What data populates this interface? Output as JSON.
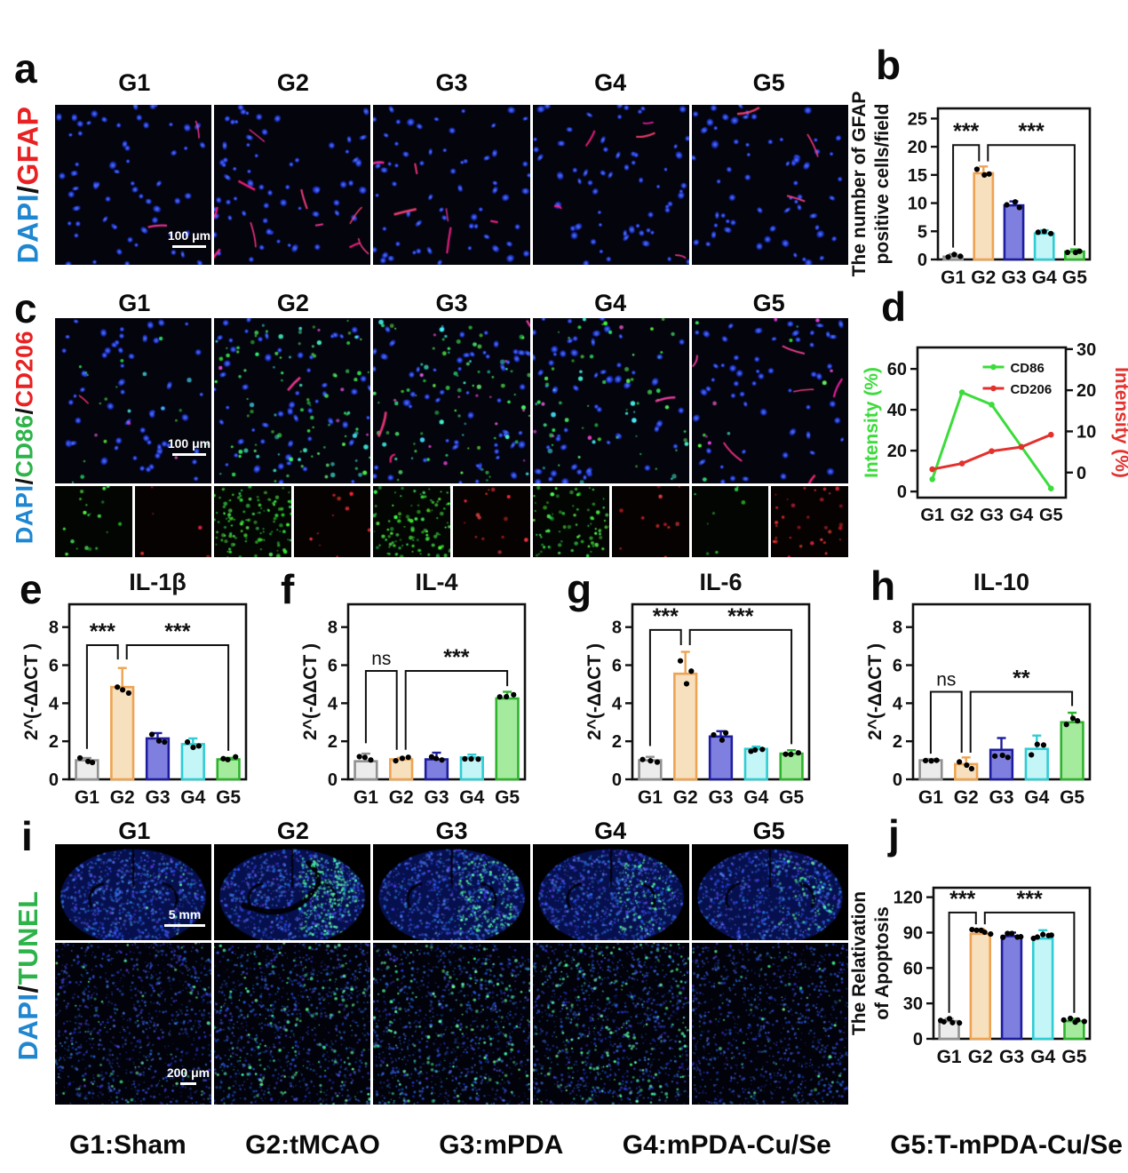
{
  "figure": {
    "groups": [
      "G1",
      "G2",
      "G3",
      "G4",
      "G5"
    ],
    "legend": [
      "G1:Sham",
      "G2:tMCAO",
      "G3:mPDA",
      "G4:mPDA-Cu/Se",
      "G5:T-mPDA-Cu/Se"
    ],
    "panels": {
      "a": {
        "letter": "a"
      },
      "b": {
        "letter": "b"
      },
      "c": {
        "letter": "c"
      },
      "d": {
        "letter": "d"
      },
      "e": {
        "letter": "e"
      },
      "f": {
        "letter": "f"
      },
      "g": {
        "letter": "g"
      },
      "h": {
        "letter": "h"
      },
      "i": {
        "letter": "i"
      },
      "j": {
        "letter": "j"
      }
    },
    "side_labels": {
      "a": [
        {
          "t": "DAPI",
          "c": "#1f86d0"
        },
        {
          "t": "/",
          "c": "#111111"
        },
        {
          "t": "GFAP",
          "c": "#e82222"
        }
      ],
      "c": [
        {
          "t": "DAPI",
          "c": "#1f86d0"
        },
        {
          "t": "/",
          "c": "#111111"
        },
        {
          "t": "CD86",
          "c": "#2db34a"
        },
        {
          "t": "/",
          "c": "#111111"
        },
        {
          "t": "CD206",
          "c": "#e82222"
        }
      ],
      "i": [
        {
          "t": "DAPI",
          "c": "#1f86d0"
        },
        {
          "t": "/",
          "c": "#111111"
        },
        {
          "t": "TUNEL",
          "c": "#2db34a"
        }
      ]
    },
    "scalebars": {
      "a": "100 μm",
      "c": "100 μm",
      "i_top": "5 mm",
      "i_bottom": "200 μm"
    },
    "colors": {
      "bar_fills": [
        "#ececec",
        "#f7e0bd",
        "#7f7fe0",
        "#c4f5f7",
        "#a5eb9e"
      ],
      "bar_strokes": [
        "#909090",
        "#eea353",
        "#1d1d9e",
        "#2fcdd4",
        "#2eb32e"
      ],
      "line_green": "#3bdc3b",
      "line_red": "#e3312d"
    },
    "microscopy": {
      "a": {
        "nuclei": 62,
        "red_streaks": [
          2,
          10,
          6,
          5,
          3
        ]
      },
      "c_merged": {
        "nuclei": 55,
        "green": [
          14,
          70,
          58,
          48,
          6
        ],
        "magenta": [
          3,
          5,
          12,
          5,
          6
        ],
        "red_streaks": [
          1,
          1,
          3,
          1,
          6
        ]
      },
      "c_channels": {
        "green": [
          12,
          75,
          65,
          50,
          5
        ],
        "red": [
          3,
          6,
          9,
          7,
          20
        ]
      },
      "i_top": {
        "lesion_green": [
          3,
          45,
          30,
          20,
          12
        ]
      },
      "i_bottom": {
        "green": [
          20,
          50,
          55,
          70,
          15
        ]
      }
    }
  },
  "chart_data": [
    {
      "panel": "b",
      "type": "bar",
      "categories": [
        "G1",
        "G2",
        "G3",
        "G4",
        "G5"
      ],
      "values": [
        0.5,
        15.3,
        9.6,
        4.6,
        1.4
      ],
      "errors": [
        0.45,
        1.2,
        0.7,
        0.6,
        0.4
      ],
      "points": 3,
      "ylabel_lines": [
        "The number of GFAP",
        "positive cells/field"
      ],
      "ylim": [
        0,
        26.8
      ],
      "yticks": [
        0,
        5,
        10,
        15,
        20,
        25
      ],
      "significance": [
        {
          "from": "G1",
          "to": "G2",
          "label": "***",
          "y_from": 2.1,
          "y_to": 17.4,
          "y_top": 20.3
        },
        {
          "from": "G2",
          "to": "G5",
          "label": "***",
          "y_from": 17.4,
          "y_to": 2.5,
          "y_top": 20.3
        }
      ]
    },
    {
      "panel": "d",
      "type": "line",
      "x": [
        "G1",
        "G2",
        "G3",
        "G4",
        "G5"
      ],
      "series": [
        {
          "name": "CD86",
          "axis": "left",
          "color": "#3bdc3b",
          "values": [
            6,
            48.5,
            42.5,
            22,
            1.5
          ]
        },
        {
          "name": "CD206",
          "axis": "right",
          "color": "#e3312d",
          "values": [
            0.8,
            2.2,
            5.2,
            6.2,
            9.2
          ]
        }
      ],
      "left_ylabel": "Intensity (%)",
      "right_ylabel": "Intensity (%)",
      "left_ylim": [
        -3,
        70.5
      ],
      "right_ylim": [
        -6.1,
        30.4
      ],
      "left_yticks": [
        0,
        20,
        40,
        60
      ],
      "right_yticks": [
        0,
        10,
        20,
        30
      ],
      "legend": [
        "CD86",
        "CD206"
      ],
      "legend_position": "top-right"
    },
    {
      "panel": "e",
      "type": "bar",
      "title": "IL-1β",
      "categories": [
        "G1",
        "G2",
        "G3",
        "G4",
        "G5"
      ],
      "values": [
        1.0,
        4.85,
        2.15,
        1.85,
        1.05
      ],
      "errors": [
        0.12,
        1.0,
        0.28,
        0.3,
        0.08
      ],
      "points": 3,
      "ylabel": "2^(-ΔΔCT )",
      "ylim": [
        0,
        9.2
      ],
      "yticks": [
        0,
        2,
        4,
        6,
        8
      ],
      "significance": [
        {
          "from": "G1",
          "to": "G2",
          "label": "***",
          "y_from": 1.6,
          "y_to": 6.3,
          "y_top": 7.05
        },
        {
          "from": "G2",
          "to": "G5",
          "label": "***",
          "y_from": 6.3,
          "y_to": 1.5,
          "y_top": 7.05
        }
      ]
    },
    {
      "panel": "f",
      "type": "bar",
      "title": "IL-4",
      "categories": [
        "G1",
        "G2",
        "G3",
        "G4",
        "G5"
      ],
      "values": [
        0.95,
        1.05,
        1.05,
        1.15,
        4.25
      ],
      "errors": [
        0.4,
        0.08,
        0.35,
        0.15,
        0.35
      ],
      "points": 3,
      "ylabel": "2^(-ΔΔCT )",
      "ylim": [
        0,
        9.2
      ],
      "yticks": [
        0,
        2,
        4,
        6,
        8
      ],
      "significance": [
        {
          "from": "G1",
          "to": "G2",
          "label": "ns",
          "y_from": 1.9,
          "y_to": 1.55,
          "y_top": 5.7
        },
        {
          "from": "G2",
          "to": "G5",
          "label": "***",
          "y_from": 1.55,
          "y_to": 4.9,
          "y_top": 5.7
        }
      ]
    },
    {
      "panel": "g",
      "type": "bar",
      "title": "IL-6",
      "categories": [
        "G1",
        "G2",
        "G3",
        "G4",
        "G5"
      ],
      "values": [
        1.0,
        5.55,
        2.25,
        1.6,
        1.35
      ],
      "errors": [
        0.18,
        1.15,
        0.28,
        0.12,
        0.18
      ],
      "points": 3,
      "ylabel": "2^(-ΔΔCT )",
      "ylim": [
        0,
        9.2
      ],
      "yticks": [
        0,
        2,
        4,
        6,
        8
      ],
      "significance": [
        {
          "from": "G1",
          "to": "G2",
          "label": "***",
          "y_from": 1.75,
          "y_to": 7.05,
          "y_top": 7.85
        },
        {
          "from": "G2",
          "to": "G5",
          "label": "***",
          "y_from": 7.05,
          "y_to": 1.85,
          "y_top": 7.85
        }
      ]
    },
    {
      "panel": "h",
      "type": "bar",
      "title": "IL-10",
      "categories": [
        "G1",
        "G2",
        "G3",
        "G4",
        "G5"
      ],
      "values": [
        1.0,
        0.8,
        1.55,
        1.6,
        3.0
      ],
      "errors": [
        0.07,
        0.35,
        0.62,
        0.7,
        0.5
      ],
      "points": 3,
      "ylabel": "2^(-ΔΔCT )",
      "ylim": [
        0,
        9.2
      ],
      "yticks": [
        0,
        2,
        4,
        6,
        8
      ],
      "significance": [
        {
          "from": "G1",
          "to": "G2",
          "label": "ns",
          "y_from": 1.35,
          "y_to": 1.4,
          "y_top": 4.6
        },
        {
          "from": "G2",
          "to": "G5",
          "label": "**",
          "y_from": 1.4,
          "y_to": 3.85,
          "y_top": 4.6
        }
      ]
    },
    {
      "panel": "j",
      "type": "bar",
      "categories": [
        "G1",
        "G2",
        "G3",
        "G4",
        "G5"
      ],
      "values": [
        15,
        89,
        87,
        85,
        15
      ],
      "errors": [
        2,
        4,
        3,
        7,
        2
      ],
      "points": 5,
      "ylabel_lines": [
        "The Relativation",
        "of Apoptosis"
      ],
      "ylim": [
        0,
        128
      ],
      "yticks": [
        0,
        30,
        60,
        90,
        120
      ],
      "significance": [
        {
          "from": "G1",
          "to": "G2",
          "label": "***",
          "y_from": 22,
          "y_to": 97,
          "y_top": 107
        },
        {
          "from": "G2",
          "to": "G5",
          "label": "***",
          "y_from": 97,
          "y_to": 22,
          "y_top": 107
        }
      ]
    }
  ]
}
